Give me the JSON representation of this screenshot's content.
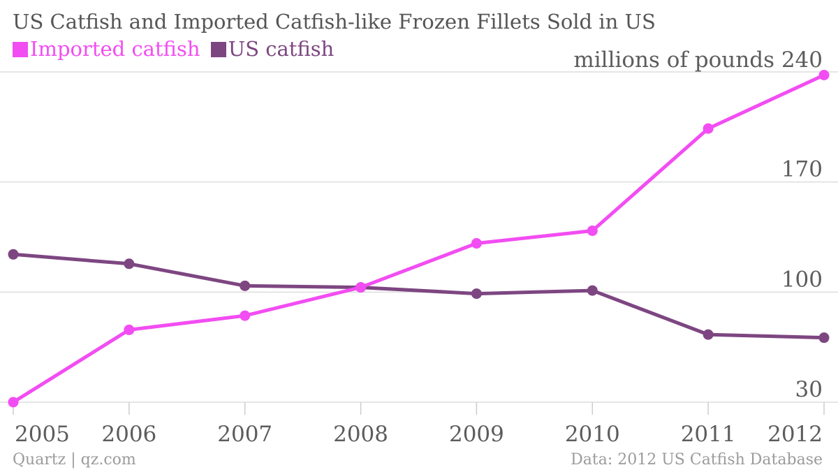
{
  "chart_data": {
    "type": "line",
    "title": "US Catfish and Imported Catfish-like Frozen Fillets Sold in US",
    "x": [
      "2005",
      "2006",
      "2007",
      "2008",
      "2009",
      "2010",
      "2011",
      "2012"
    ],
    "yunit": "millions of pounds",
    "yticks": [
      30,
      100,
      170,
      240
    ],
    "ylim": [
      30,
      240
    ],
    "grid": true,
    "legend": "top-left",
    "series": [
      {
        "name": "Imported catfish",
        "color": "#f24df2",
        "values": [
          30,
          76,
          85,
          103,
          131,
          139,
          204,
          238
        ]
      },
      {
        "name": "US catfish",
        "color": "#7d4681",
        "values": [
          124,
          118,
          104,
          103,
          99,
          101,
          73,
          71
        ]
      }
    ]
  },
  "footer": {
    "left": "Quartz | qz.com",
    "right": "Data: 2012 US Catfish Database"
  }
}
